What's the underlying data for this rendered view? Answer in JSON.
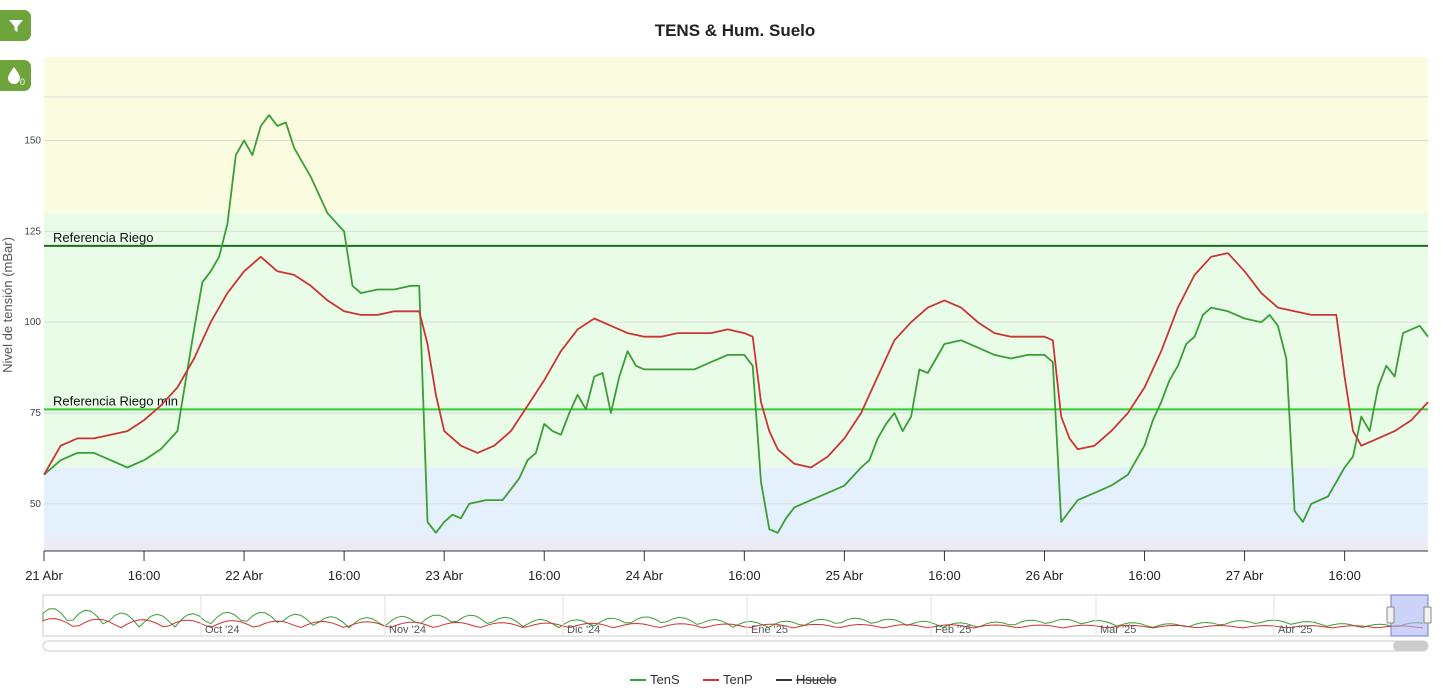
{
  "chart_data": {
    "type": "line",
    "title": "TENS & Hum. Suelo",
    "ylabel": "Nivel de tensión (mBar)",
    "xlabel": "",
    "ylim": [
      37,
      173
    ],
    "y_ticks": [
      50,
      75,
      100,
      125,
      150
    ],
    "x_ticks": [
      "21 Abr",
      "16:00",
      "22 Abr",
      "16:00",
      "23 Abr",
      "16:00",
      "24 Abr",
      "16:00",
      "25 Abr",
      "16:00",
      "26 Abr",
      "16:00",
      "27 Abr",
      "16:00"
    ],
    "x_range_hours": [
      0,
      166
    ],
    "bands": [
      {
        "from": 130,
        "to": 173,
        "color": "#fbfbe0"
      },
      {
        "from": 60,
        "to": 130,
        "color": "#e8fce8"
      },
      {
        "from": 41,
        "to": 60,
        "color": "#e4f0fc"
      },
      {
        "from": 37,
        "to": 41,
        "color": "#ebebf5"
      }
    ],
    "reference_lines": [
      {
        "label": "Referencia Riego",
        "value": 121,
        "color": "#1f6e1f"
      },
      {
        "label": "Referencia Riego min",
        "value": 76,
        "color": "#33cc33"
      }
    ],
    "series": [
      {
        "name": "TenS",
        "color": "#3c9e36",
        "points": [
          [
            0,
            58
          ],
          [
            2,
            62
          ],
          [
            4,
            64
          ],
          [
            6,
            64
          ],
          [
            8,
            62
          ],
          [
            10,
            60
          ],
          [
            12,
            62
          ],
          [
            14,
            65
          ],
          [
            16,
            70
          ],
          [
            17,
            84
          ],
          [
            18,
            98
          ],
          [
            19,
            111
          ],
          [
            20,
            114
          ],
          [
            21,
            118
          ],
          [
            22,
            127
          ],
          [
            23,
            146
          ],
          [
            24,
            150
          ],
          [
            25,
            146
          ],
          [
            26,
            154
          ],
          [
            27,
            157
          ],
          [
            28,
            154
          ],
          [
            29,
            155
          ],
          [
            30,
            148
          ],
          [
            32,
            140
          ],
          [
            34,
            130
          ],
          [
            36,
            125
          ],
          [
            37,
            110
          ],
          [
            38,
            108
          ],
          [
            40,
            109
          ],
          [
            42,
            109
          ],
          [
            44,
            110
          ],
          [
            45,
            110
          ],
          [
            46,
            45
          ],
          [
            47,
            42
          ],
          [
            48,
            45
          ],
          [
            49,
            47
          ],
          [
            50,
            46
          ],
          [
            51,
            50
          ],
          [
            53,
            51
          ],
          [
            55,
            51
          ],
          [
            56,
            54
          ],
          [
            57,
            57
          ],
          [
            58,
            62
          ],
          [
            59,
            64
          ],
          [
            60,
            72
          ],
          [
            61,
            70
          ],
          [
            62,
            69
          ],
          [
            63,
            75
          ],
          [
            64,
            80
          ],
          [
            65,
            76
          ],
          [
            66,
            85
          ],
          [
            67,
            86
          ],
          [
            68,
            75
          ],
          [
            69,
            85
          ],
          [
            70,
            92
          ],
          [
            71,
            88
          ],
          [
            72,
            87
          ],
          [
            74,
            87
          ],
          [
            76,
            87
          ],
          [
            78,
            87
          ],
          [
            80,
            89
          ],
          [
            82,
            91
          ],
          [
            84,
            91
          ],
          [
            85,
            88
          ],
          [
            86,
            56
          ],
          [
            87,
            43
          ],
          [
            88,
            42
          ],
          [
            89,
            46
          ],
          [
            90,
            49
          ],
          [
            92,
            51
          ],
          [
            94,
            53
          ],
          [
            96,
            55
          ],
          [
            98,
            60
          ],
          [
            99,
            62
          ],
          [
            100,
            68
          ],
          [
            101,
            72
          ],
          [
            102,
            75
          ],
          [
            103,
            70
          ],
          [
            104,
            74
          ],
          [
            105,
            87
          ],
          [
            106,
            86
          ],
          [
            107,
            90
          ],
          [
            108,
            94
          ],
          [
            110,
            95
          ],
          [
            112,
            93
          ],
          [
            114,
            91
          ],
          [
            116,
            90
          ],
          [
            118,
            91
          ],
          [
            120,
            91
          ],
          [
            121,
            89
          ],
          [
            122,
            45
          ],
          [
            123,
            48
          ],
          [
            124,
            51
          ],
          [
            126,
            53
          ],
          [
            128,
            55
          ],
          [
            130,
            58
          ],
          [
            131,
            62
          ],
          [
            132,
            66
          ],
          [
            133,
            73
          ],
          [
            134,
            78
          ],
          [
            135,
            84
          ],
          [
            136,
            88
          ],
          [
            137,
            94
          ],
          [
            138,
            96
          ],
          [
            139,
            102
          ],
          [
            140,
            104
          ],
          [
            142,
            103
          ],
          [
            144,
            101
          ],
          [
            146,
            100
          ],
          [
            147,
            102
          ],
          [
            148,
            99
          ],
          [
            149,
            90
          ],
          [
            150,
            48
          ],
          [
            151,
            45
          ],
          [
            152,
            50
          ],
          [
            154,
            52
          ],
          [
            156,
            60
          ],
          [
            157,
            63
          ],
          [
            158,
            74
          ],
          [
            159,
            70
          ],
          [
            160,
            82
          ],
          [
            161,
            88
          ],
          [
            162,
            85
          ],
          [
            163,
            97
          ],
          [
            164,
            98
          ],
          [
            165,
            99
          ],
          [
            166,
            96
          ]
        ]
      },
      {
        "name": "TenP",
        "color": "#cc3535",
        "points": [
          [
            0,
            58
          ],
          [
            2,
            66
          ],
          [
            4,
            68
          ],
          [
            6,
            68
          ],
          [
            8,
            69
          ],
          [
            10,
            70
          ],
          [
            12,
            73
          ],
          [
            14,
            77
          ],
          [
            16,
            82
          ],
          [
            18,
            90
          ],
          [
            20,
            100
          ],
          [
            22,
            108
          ],
          [
            24,
            114
          ],
          [
            26,
            118
          ],
          [
            28,
            114
          ],
          [
            30,
            113
          ],
          [
            32,
            110
          ],
          [
            34,
            106
          ],
          [
            36,
            103
          ],
          [
            38,
            102
          ],
          [
            40,
            102
          ],
          [
            42,
            103
          ],
          [
            44,
            103
          ],
          [
            45,
            103
          ],
          [
            46,
            94
          ],
          [
            47,
            80
          ],
          [
            48,
            70
          ],
          [
            50,
            66
          ],
          [
            52,
            64
          ],
          [
            54,
            66
          ],
          [
            56,
            70
          ],
          [
            58,
            77
          ],
          [
            60,
            84
          ],
          [
            62,
            92
          ],
          [
            64,
            98
          ],
          [
            66,
            101
          ],
          [
            68,
            99
          ],
          [
            70,
            97
          ],
          [
            72,
            96
          ],
          [
            74,
            96
          ],
          [
            76,
            97
          ],
          [
            78,
            97
          ],
          [
            80,
            97
          ],
          [
            82,
            98
          ],
          [
            84,
            97
          ],
          [
            85,
            96
          ],
          [
            86,
            78
          ],
          [
            87,
            70
          ],
          [
            88,
            65
          ],
          [
            90,
            61
          ],
          [
            92,
            60
          ],
          [
            94,
            63
          ],
          [
            96,
            68
          ],
          [
            98,
            75
          ],
          [
            100,
            85
          ],
          [
            102,
            95
          ],
          [
            104,
            100
          ],
          [
            106,
            104
          ],
          [
            108,
            106
          ],
          [
            110,
            104
          ],
          [
            112,
            100
          ],
          [
            114,
            97
          ],
          [
            116,
            96
          ],
          [
            118,
            96
          ],
          [
            120,
            96
          ],
          [
            121,
            95
          ],
          [
            122,
            74
          ],
          [
            123,
            68
          ],
          [
            124,
            65
          ],
          [
            126,
            66
          ],
          [
            128,
            70
          ],
          [
            130,
            75
          ],
          [
            132,
            82
          ],
          [
            134,
            92
          ],
          [
            136,
            104
          ],
          [
            138,
            113
          ],
          [
            140,
            118
          ],
          [
            142,
            119
          ],
          [
            144,
            114
          ],
          [
            146,
            108
          ],
          [
            148,
            104
          ],
          [
            150,
            103
          ],
          [
            152,
            102
          ],
          [
            154,
            102
          ],
          [
            155,
            102
          ],
          [
            156,
            85
          ],
          [
            157,
            70
          ],
          [
            158,
            66
          ],
          [
            160,
            68
          ],
          [
            162,
            70
          ],
          [
            164,
            73
          ],
          [
            166,
            78
          ]
        ]
      },
      {
        "name": "Hsuelo",
        "color": "#333333",
        "hidden": true,
        "points": []
      }
    ]
  },
  "navigator": {
    "labels": [
      "Oct '24",
      "Nov '24",
      "Dic '24",
      "Ene '25",
      "Feb '25",
      "Mar '25",
      "Abr '25"
    ]
  },
  "legend": {
    "items": [
      "TenS",
      "TenP",
      "Hsuelo"
    ],
    "hidden_item": "Hsuelo"
  },
  "icons": {
    "filter": "filter-icon",
    "drop": "water-drop-icon",
    "drop_badge": "0"
  },
  "colors": {
    "button_green": "#6fa33c"
  }
}
